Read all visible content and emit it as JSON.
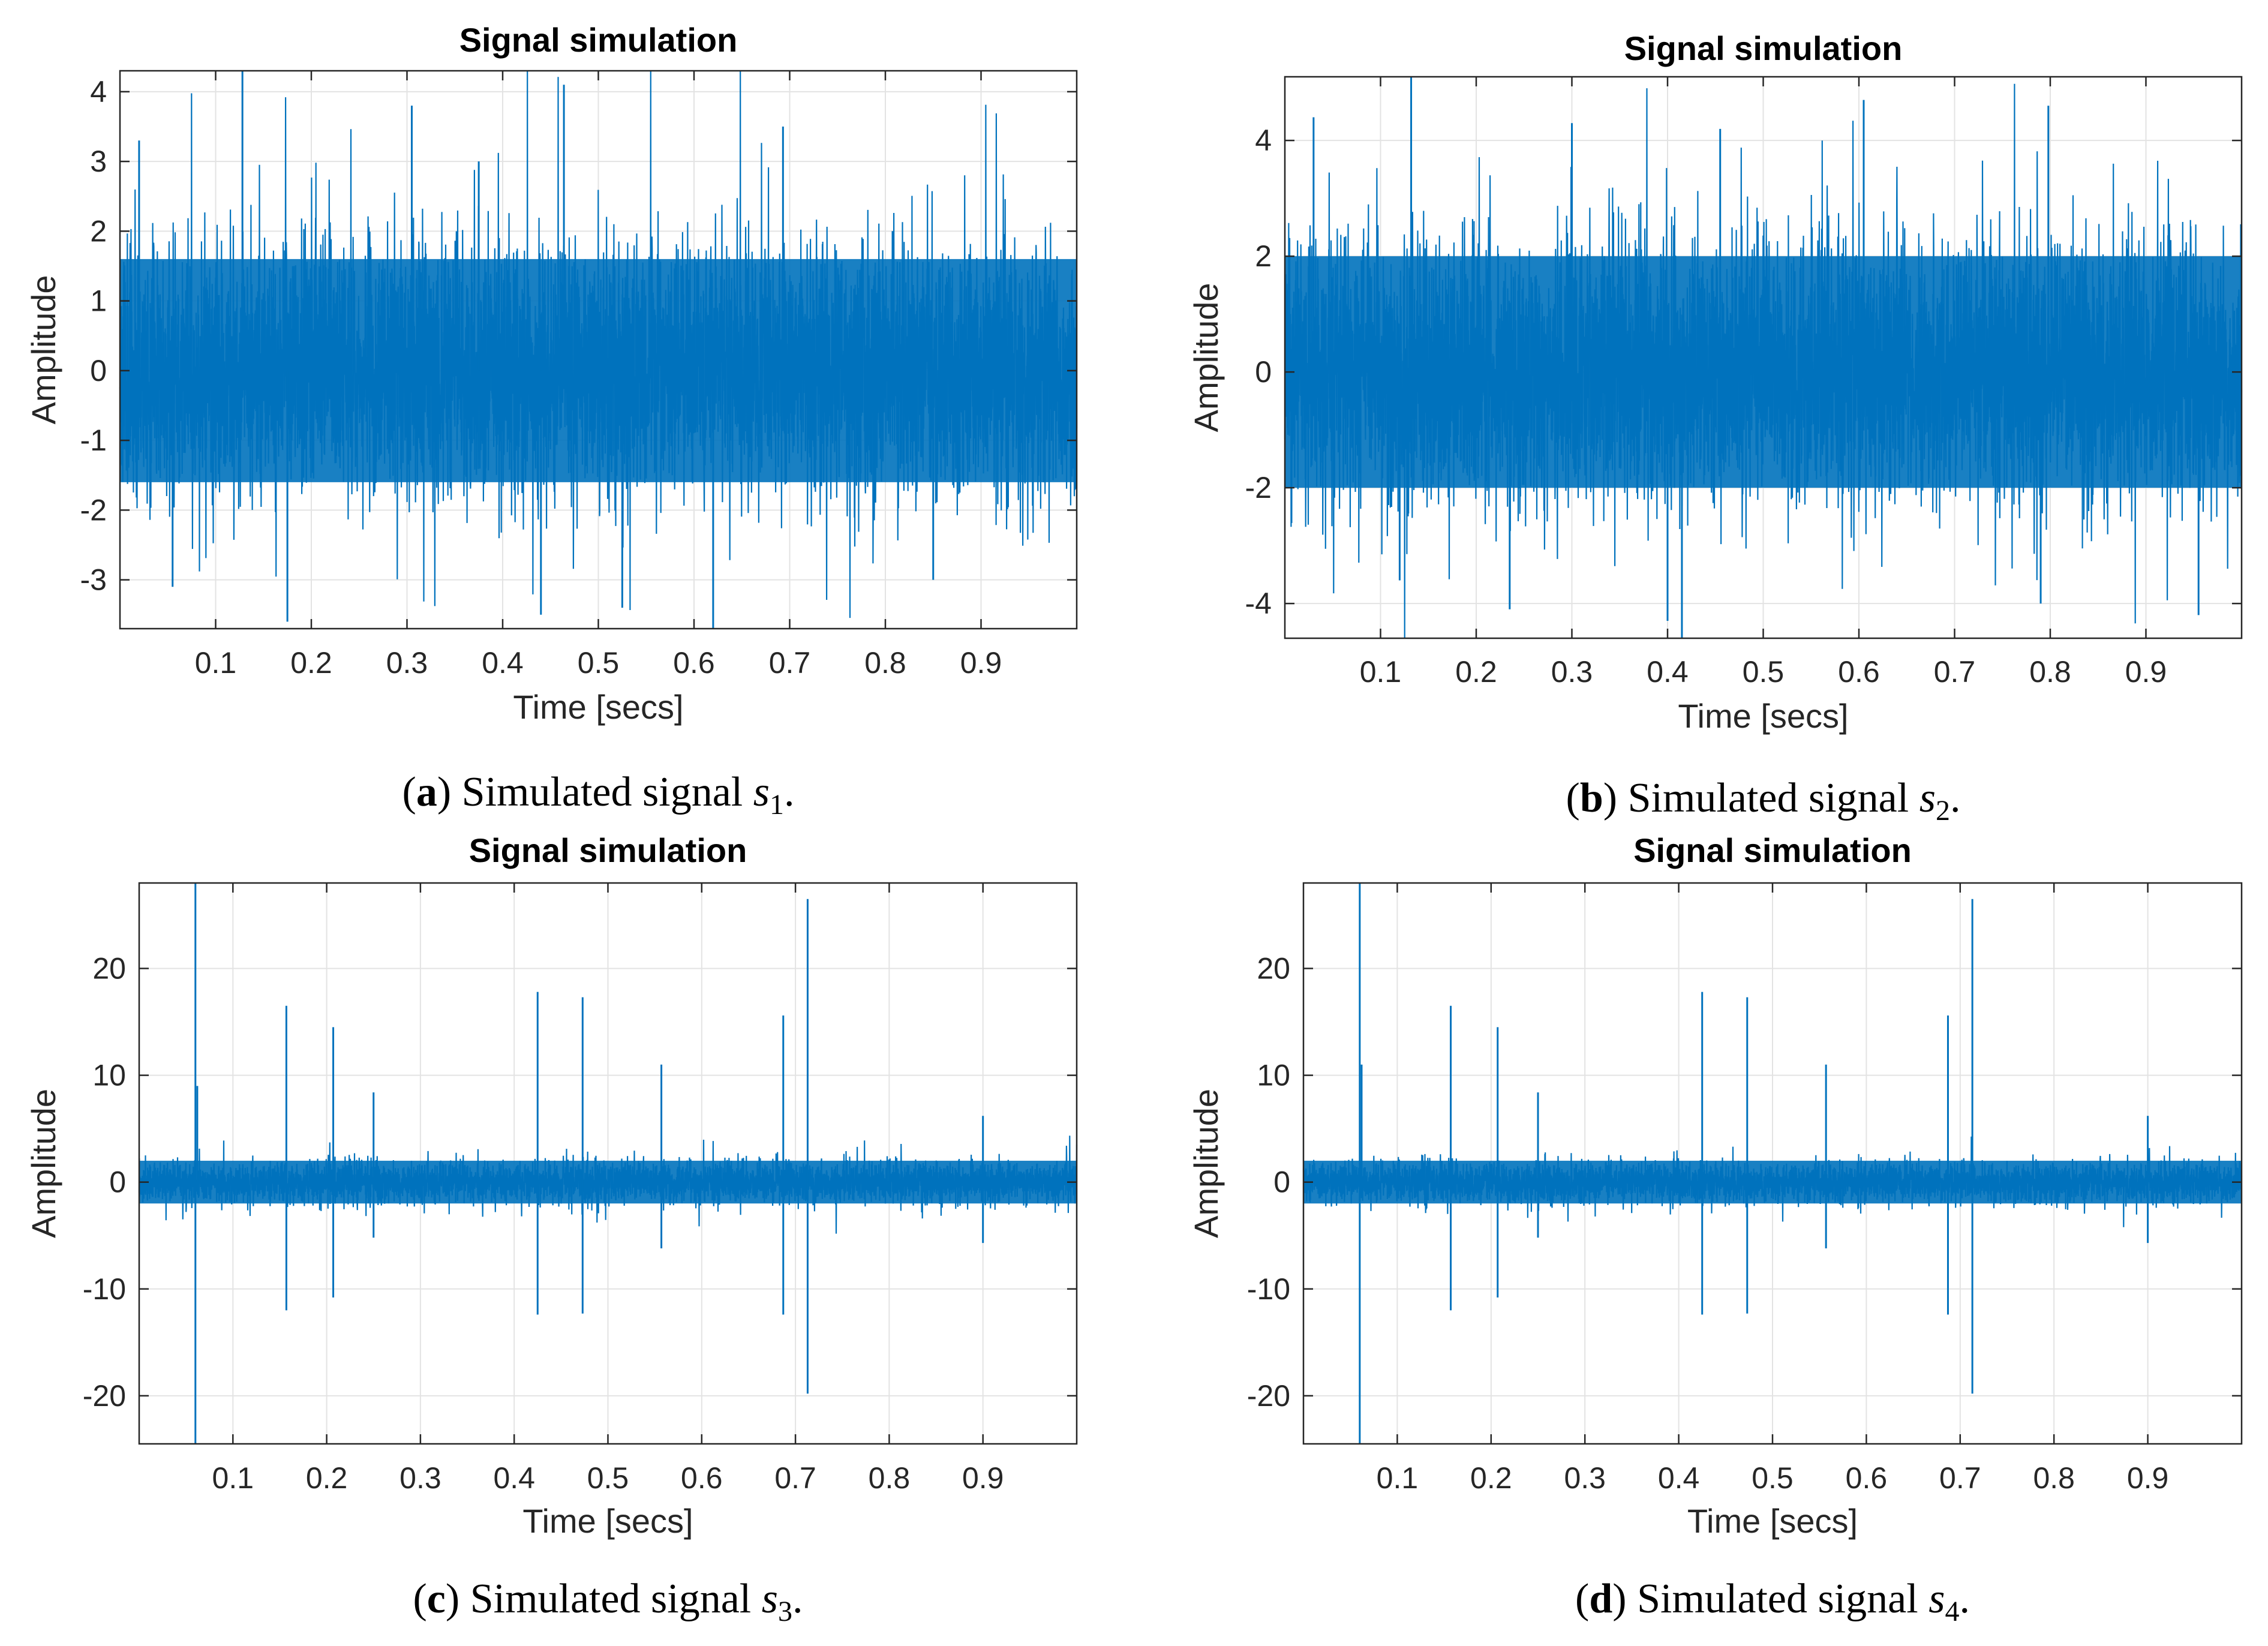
{
  "colors": {
    "signal": "#0072bd",
    "grid": "#e3e3e3",
    "axis": "#262626"
  },
  "chart_data": [
    {
      "id": "a",
      "type": "line",
      "title": "Signal simulation",
      "xlabel": "Time [secs]",
      "ylabel": "Amplitude",
      "xlim": [
        0,
        1
      ],
      "ylim": [
        -3.7,
        4.3
      ],
      "xticks": [
        0.1,
        0.2,
        0.3,
        0.4,
        0.5,
        0.6,
        0.7,
        0.8,
        0.9
      ],
      "xtick_labels": [
        "0.1",
        "0.2",
        "0.3",
        "0.4",
        "0.5",
        "0.6",
        "0.7",
        "0.8",
        "0.9"
      ],
      "yticks": [
        -3,
        -2,
        -1,
        0,
        1,
        2,
        3,
        4
      ],
      "ytick_labels": [
        "-3",
        "-2",
        "-1",
        "0",
        "1",
        "2",
        "3",
        "4"
      ],
      "grid": true,
      "signal": {
        "kind": "dense_noise",
        "sigma": 0.85,
        "body_amplitude": 1.6,
        "seed": 11
      },
      "spikes": [
        {
          "x": 0.128,
          "y": 4.3
        },
        {
          "x": 0.464,
          "y": 4.1
        },
        {
          "x": 0.305,
          "y": 3.8
        },
        {
          "x": 0.693,
          "y": 3.5
        },
        {
          "x": 0.02,
          "y": 3.3
        },
        {
          "x": 0.175,
          "y": -3.6
        },
        {
          "x": 0.62,
          "y": -3.7
        },
        {
          "x": 0.525,
          "y": -3.4
        },
        {
          "x": 0.44,
          "y": -3.5
        },
        {
          "x": 0.055,
          "y": -3.1
        },
        {
          "x": 0.85,
          "y": -3.0
        },
        {
          "x": 0.375,
          "y": 3.0
        }
      ],
      "caption": {
        "letter": "a",
        "text": " Simulated signal ",
        "var": "s",
        "sub": "1",
        "end": "."
      }
    },
    {
      "id": "b",
      "type": "line",
      "title": "Signal simulation",
      "xlabel": "Time [secs]",
      "ylabel": "Amplitude",
      "xlim": [
        0,
        1
      ],
      "ylim": [
        -4.6,
        5.1
      ],
      "xticks": [
        0.1,
        0.2,
        0.3,
        0.4,
        0.5,
        0.6,
        0.7,
        0.8,
        0.9
      ],
      "xtick_labels": [
        "0.1",
        "0.2",
        "0.3",
        "0.4",
        "0.5",
        "0.6",
        "0.7",
        "0.8",
        "0.9"
      ],
      "yticks": [
        -4,
        -2,
        0,
        2,
        4
      ],
      "ytick_labels": [
        "-4",
        "-2",
        "0",
        "2",
        "4"
      ],
      "grid": true,
      "signal": {
        "kind": "dense_noise",
        "sigma": 1.05,
        "body_amplitude": 2.0,
        "seed": 23
      },
      "spikes": [
        {
          "x": 0.132,
          "y": 5.1
        },
        {
          "x": 0.605,
          "y": 4.7
        },
        {
          "x": 0.798,
          "y": 4.6
        },
        {
          "x": 0.03,
          "y": 4.4
        },
        {
          "x": 0.3,
          "y": 4.3
        },
        {
          "x": 0.455,
          "y": 4.2
        },
        {
          "x": 0.415,
          "y": -4.6
        },
        {
          "x": 0.4,
          "y": -4.3
        },
        {
          "x": 0.235,
          "y": -4.1
        },
        {
          "x": 0.79,
          "y": -4.0
        },
        {
          "x": 0.955,
          "y": -4.2
        },
        {
          "x": 0.12,
          "y": -3.6
        }
      ],
      "caption": {
        "letter": "b",
        "text": " Simulated signal ",
        "var": "s",
        "sub": "2",
        "end": "."
      }
    },
    {
      "id": "c",
      "type": "line",
      "title": "Signal simulation",
      "xlabel": "Time [secs]",
      "ylabel": "Amplitude",
      "xlim": [
        0,
        1
      ],
      "ylim": [
        -24.5,
        28
      ],
      "xticks": [
        0.1,
        0.2,
        0.3,
        0.4,
        0.5,
        0.6,
        0.7,
        0.8,
        0.9
      ],
      "xtick_labels": [
        "0.1",
        "0.2",
        "0.3",
        "0.4",
        "0.5",
        "0.6",
        "0.7",
        "0.8",
        "0.9"
      ],
      "yticks": [
        -20,
        -10,
        0,
        10,
        20
      ],
      "ytick_labels": [
        "-20",
        "-10",
        "0",
        "10",
        "20"
      ],
      "grid": true,
      "signal": {
        "kind": "dense_noise",
        "sigma": 0.9,
        "body_amplitude": 2.0,
        "seed": 37
      },
      "spikes": [
        {
          "x": 0.06,
          "y": 28.0
        },
        {
          "x": 0.06,
          "y": -24.5
        },
        {
          "x": 0.062,
          "y": 9.0
        },
        {
          "x": 0.157,
          "y": 16.5
        },
        {
          "x": 0.157,
          "y": -12.0
        },
        {
          "x": 0.207,
          "y": 14.5
        },
        {
          "x": 0.207,
          "y": -10.8
        },
        {
          "x": 0.25,
          "y": 8.4
        },
        {
          "x": 0.25,
          "y": -5.2
        },
        {
          "x": 0.425,
          "y": 17.8
        },
        {
          "x": 0.425,
          "y": -12.4
        },
        {
          "x": 0.473,
          "y": 17.3
        },
        {
          "x": 0.473,
          "y": -12.3
        },
        {
          "x": 0.557,
          "y": 11.0
        },
        {
          "x": 0.557,
          "y": -6.2
        },
        {
          "x": 0.687,
          "y": 15.6
        },
        {
          "x": 0.687,
          "y": -12.4
        },
        {
          "x": 0.713,
          "y": 26.5
        },
        {
          "x": 0.713,
          "y": -19.8
        },
        {
          "x": 0.9,
          "y": 6.2
        },
        {
          "x": 0.9,
          "y": -5.7
        }
      ],
      "caption": {
        "letter": "c",
        "text": " Simulated signal ",
        "var": "s",
        "sub": "3",
        "end": "."
      }
    },
    {
      "id": "d",
      "type": "line",
      "title": "Signal simulation",
      "xlabel": "Time [secs]",
      "ylabel": "Amplitude",
      "xlim": [
        0,
        1
      ],
      "ylim": [
        -24.5,
        28
      ],
      "xticks": [
        0.1,
        0.2,
        0.3,
        0.4,
        0.5,
        0.6,
        0.7,
        0.8,
        0.9
      ],
      "xtick_labels": [
        "0.1",
        "0.2",
        "0.3",
        "0.4",
        "0.5",
        "0.6",
        "0.7",
        "0.8",
        "0.9"
      ],
      "yticks": [
        -20,
        -10,
        0,
        10,
        20
      ],
      "ytick_labels": [
        "-20",
        "-10",
        "0",
        "10",
        "20"
      ],
      "grid": true,
      "signal": {
        "kind": "dense_noise",
        "sigma": 0.9,
        "body_amplitude": 2.0,
        "seed": 53
      },
      "spikes": [
        {
          "x": 0.06,
          "y": 28.0
        },
        {
          "x": 0.06,
          "y": -24.5
        },
        {
          "x": 0.062,
          "y": 11.0
        },
        {
          "x": 0.157,
          "y": 16.5
        },
        {
          "x": 0.157,
          "y": -12.0
        },
        {
          "x": 0.207,
          "y": 14.5
        },
        {
          "x": 0.207,
          "y": -10.8
        },
        {
          "x": 0.25,
          "y": 8.4
        },
        {
          "x": 0.25,
          "y": -5.2
        },
        {
          "x": 0.425,
          "y": 17.8
        },
        {
          "x": 0.425,
          "y": -12.4
        },
        {
          "x": 0.473,
          "y": 17.3
        },
        {
          "x": 0.473,
          "y": -12.3
        },
        {
          "x": 0.557,
          "y": 11.0
        },
        {
          "x": 0.557,
          "y": -6.2
        },
        {
          "x": 0.687,
          "y": 15.6
        },
        {
          "x": 0.687,
          "y": -12.4
        },
        {
          "x": 0.713,
          "y": 26.5
        },
        {
          "x": 0.713,
          "y": -19.8
        },
        {
          "x": 0.9,
          "y": 6.2
        },
        {
          "x": 0.9,
          "y": -5.7
        }
      ],
      "caption": {
        "letter": "d",
        "text": " Simulated signal ",
        "var": "s",
        "sub": "4",
        "end": "."
      }
    }
  ]
}
